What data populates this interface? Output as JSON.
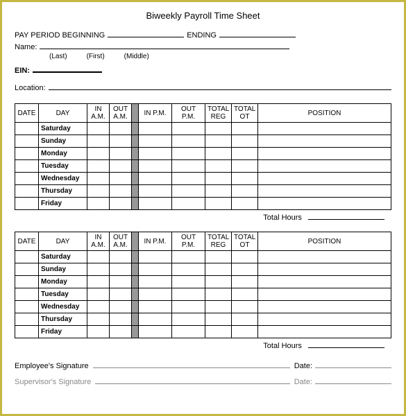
{
  "title": "Biweekly Payroll Time Sheet",
  "header": {
    "pay_period_label": "PAY PERIOD BEGINNING",
    "ending_label": "ENDING",
    "name_label": "Name:",
    "sub_last": "(Last)",
    "sub_first": "(First)",
    "sub_middle": "(Middle)",
    "ein_label": "EIN:",
    "location_label": "Location:"
  },
  "table": {
    "headers": {
      "date": "DATE",
      "day": "DAY",
      "in_am": "IN A.M.",
      "out_am": "OUT A.M.",
      "in_pm": "IN P.M.",
      "out_pm": "OUT P.M.",
      "total_reg": "TOTAL REG",
      "total_ot": "TOTAL OT",
      "position": "POSITION"
    },
    "days": [
      "Saturday",
      "Sunday",
      "Monday",
      "Tuesday",
      "Wednesday",
      "Thursday",
      "Friday"
    ],
    "total_hours_label": "Total Hours"
  },
  "signatures": {
    "employee_label": "Employee's Signature",
    "supervisor_label": "Supervisor's Signature",
    "date_label": "Date:"
  },
  "styling": {
    "border_color": "#c4b843",
    "separator_color": "#999999",
    "text_color": "#000000",
    "faded_color": "#888888",
    "font_family": "Arial",
    "title_fontsize": 13,
    "body_fontsize": 11,
    "table_fontsize": 10
  }
}
